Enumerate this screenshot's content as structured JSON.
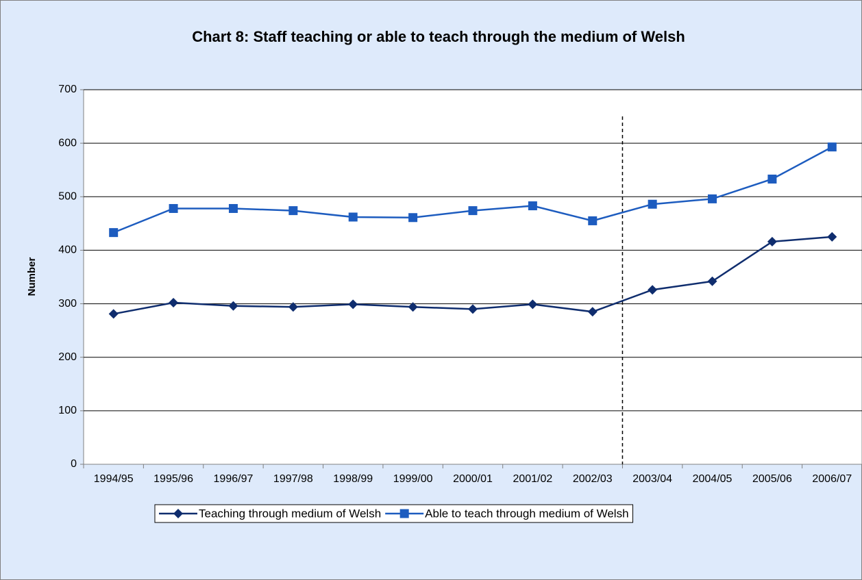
{
  "chart_data": {
    "type": "line",
    "title": "Chart 8: Staff teaching or able to teach through the medium of Welsh",
    "y_label": "Number",
    "categories": [
      "1994/95",
      "1995/96",
      "1996/97",
      "1997/98",
      "1998/99",
      "1999/00",
      "2000/01",
      "2001/02",
      "2002/03",
      "2003/04",
      "2004/05",
      "2005/06",
      "2006/07"
    ],
    "series": [
      {
        "name": "Teaching through medium of Welsh",
        "color": "#0f2d6e",
        "marker": "diamond",
        "values": [
          281,
          302,
          296,
          294,
          299,
          294,
          290,
          299,
          285,
          326,
          342,
          416,
          425
        ]
      },
      {
        "name": "Able to teach through medium of Welsh",
        "color": "#1d5cbf",
        "marker": "square",
        "values": [
          433,
          478,
          478,
          474,
          462,
          461,
          474,
          483,
          455,
          486,
          496,
          533,
          593
        ]
      }
    ],
    "ylim": [
      0,
      700
    ],
    "yticks": [
      0,
      100,
      200,
      300,
      400,
      500,
      600,
      700
    ],
    "grid": true
  }
}
